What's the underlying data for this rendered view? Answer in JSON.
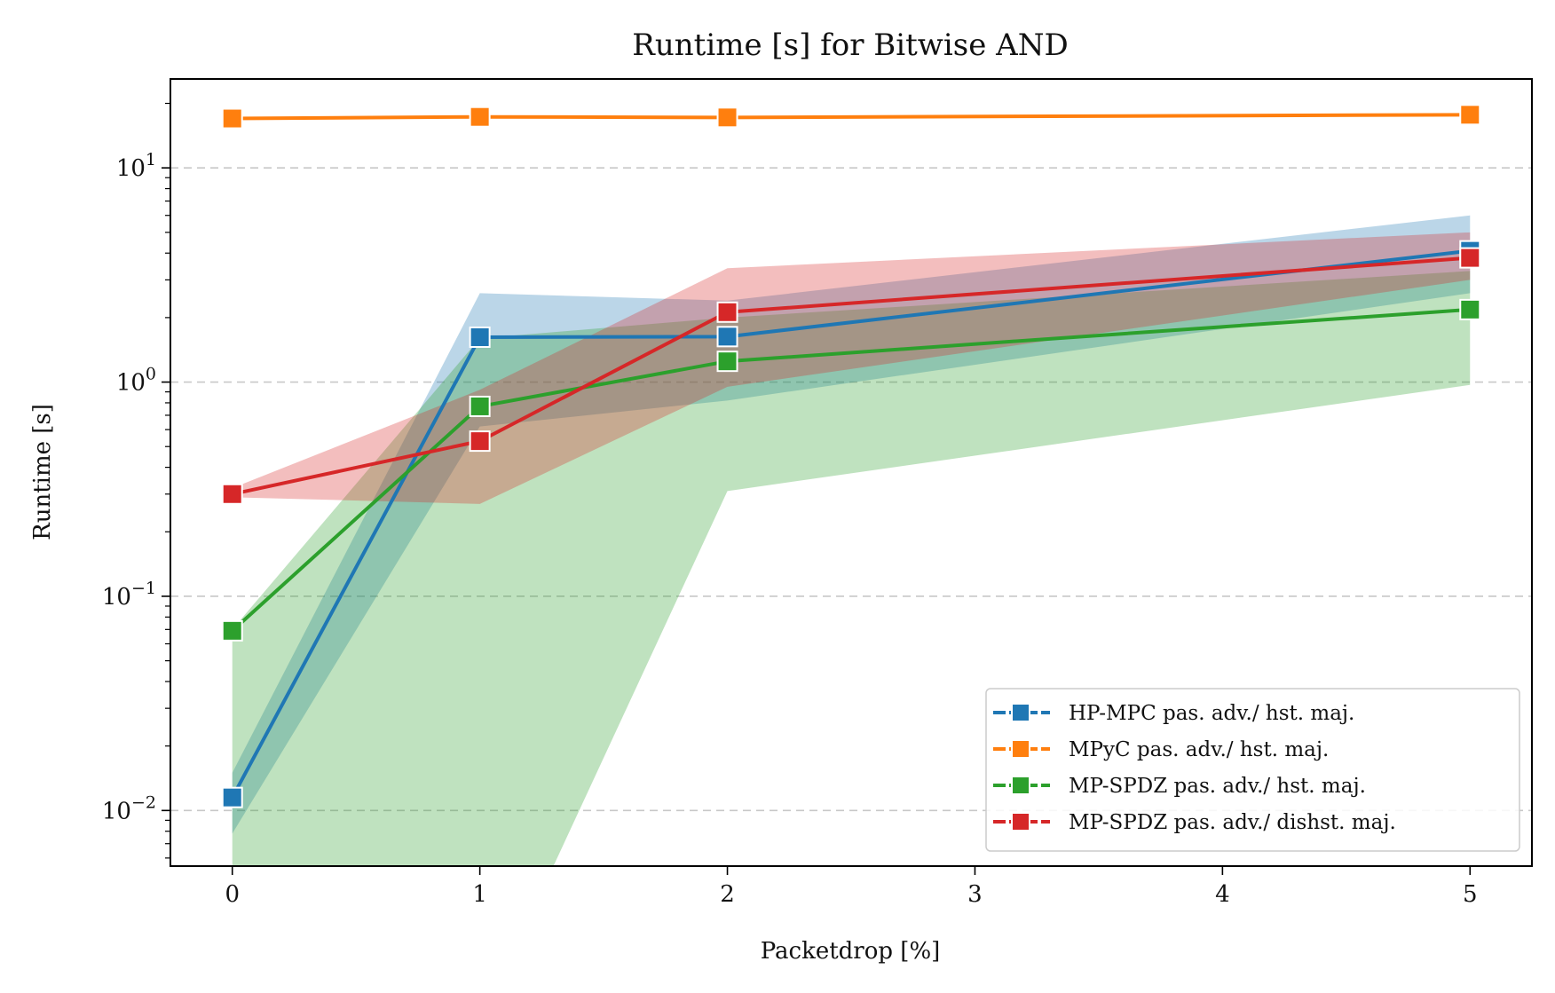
{
  "chart_data": {
    "type": "line",
    "title": "Runtime [s] for Bitwise AND",
    "xlabel": "Packetdrop [%]",
    "ylabel": "Runtime [s]",
    "yscale": "log",
    "xlim": [
      -0.25,
      5.25
    ],
    "ylim": [
      0.0055,
      26
    ],
    "x_ticks": [
      {
        "value": 0,
        "label": "0"
      },
      {
        "value": 1,
        "label": "1"
      },
      {
        "value": 2,
        "label": "2"
      },
      {
        "value": 3,
        "label": "3"
      },
      {
        "value": 4,
        "label": "4"
      },
      {
        "value": 5,
        "label": "5"
      }
    ],
    "y_ticks": [
      {
        "value": 0.01,
        "base": "10",
        "exp": "−2"
      },
      {
        "value": 0.1,
        "base": "10",
        "exp": "−1"
      },
      {
        "value": 1,
        "base": "10",
        "exp": "0"
      },
      {
        "value": 10,
        "base": "10",
        "exp": "1"
      }
    ],
    "grid": "horizontal dashed at major y ticks",
    "legend_position": "lower right",
    "series": [
      {
        "name": "HP-MPC pas. adv./ hst. maj.",
        "color": "#1f77b4",
        "x": [
          0,
          1,
          2,
          5
        ],
        "y": [
          0.0115,
          1.62,
          1.63,
          4.1
        ],
        "band_lower": [
          0.0078,
          0.62,
          0.82,
          2.6
        ],
        "band_upper": [
          0.015,
          2.6,
          2.4,
          6.0
        ]
      },
      {
        "name": "MPyC pas. adv./ hst. maj.",
        "color": "#ff7f0e",
        "x": [
          0,
          1,
          2,
          5
        ],
        "y": [
          17.0,
          17.3,
          17.2,
          17.7
        ],
        "band_lower": [
          16.9,
          17.1,
          17.0,
          17.5
        ],
        "band_upper": [
          17.2,
          17.5,
          17.4,
          17.9
        ]
      },
      {
        "name": "MP-SPDZ pas. adv./ hst. maj.",
        "color": "#2ca02c",
        "x": [
          0,
          1,
          2,
          5
        ],
        "y": [
          0.069,
          0.77,
          1.25,
          2.18
        ],
        "band_lower": [
          0.001,
          0.001,
          0.31,
          0.97
        ],
        "band_upper": [
          0.07,
          1.6,
          2.0,
          3.3
        ]
      },
      {
        "name": "MP-SPDZ pas. adv./ dishst. maj.",
        "color": "#d62728",
        "x": [
          0,
          1,
          2,
          5
        ],
        "y": [
          0.3,
          0.53,
          2.12,
          3.8
        ],
        "band_lower": [
          0.29,
          0.27,
          0.95,
          3.0
        ],
        "band_upper": [
          0.32,
          0.92,
          3.4,
          5.0
        ]
      }
    ]
  }
}
